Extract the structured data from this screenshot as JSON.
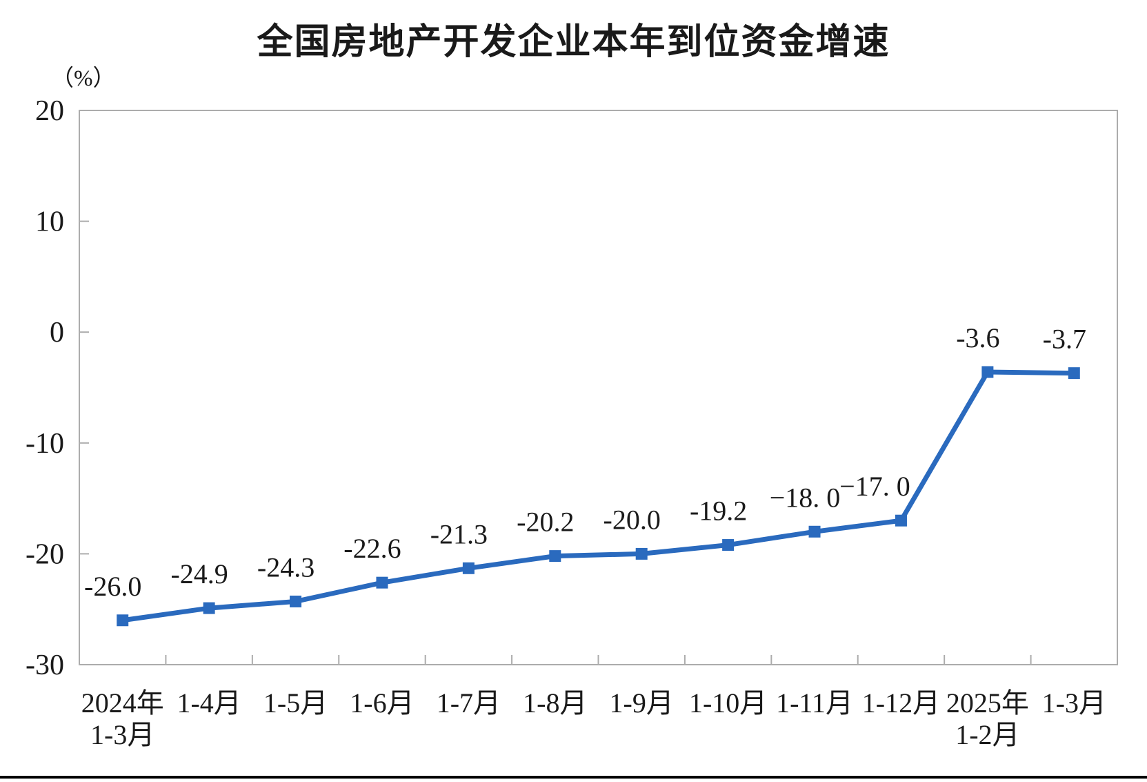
{
  "chart_data": {
    "type": "line",
    "title": "全国房地产开发企业本年到位资金增速",
    "unit_label": "（%）",
    "categories": [
      [
        "2024年",
        "1-3月"
      ],
      [
        "1-4月"
      ],
      [
        "1-5月"
      ],
      [
        "1-6月"
      ],
      [
        "1-7月"
      ],
      [
        "1-8月"
      ],
      [
        "1-9月"
      ],
      [
        "1-10月"
      ],
      [
        "1-11月"
      ],
      [
        "1-12月"
      ],
      [
        "2025年",
        "1-2月"
      ],
      [
        "1-3月"
      ]
    ],
    "values": [
      -26.0,
      -24.9,
      -24.3,
      -22.6,
      -21.3,
      -20.2,
      -20.0,
      -19.2,
      -18.0,
      -17.0,
      -3.6,
      -3.7
    ],
    "point_labels": [
      "-26.0",
      "-24.9",
      "-24.3",
      "-22.6",
      "-21.3",
      "-20.2",
      "-20.0",
      "-19.2",
      "−18. 0",
      "−17. 0",
      "-3.6",
      "-3.7"
    ],
    "y_ticks": [
      "20",
      "10",
      "0",
      "-10",
      "-20",
      "-30"
    ],
    "ylim": [
      -30,
      20
    ],
    "xlabel": "",
    "ylabel": "（%）",
    "grid": false,
    "legend_position": "none",
    "marker": "square",
    "line_color": "#2A6ABE",
    "axis_color": "#ACACAC",
    "text_color": "#1A1A1A",
    "divider_color": "#000000"
  }
}
